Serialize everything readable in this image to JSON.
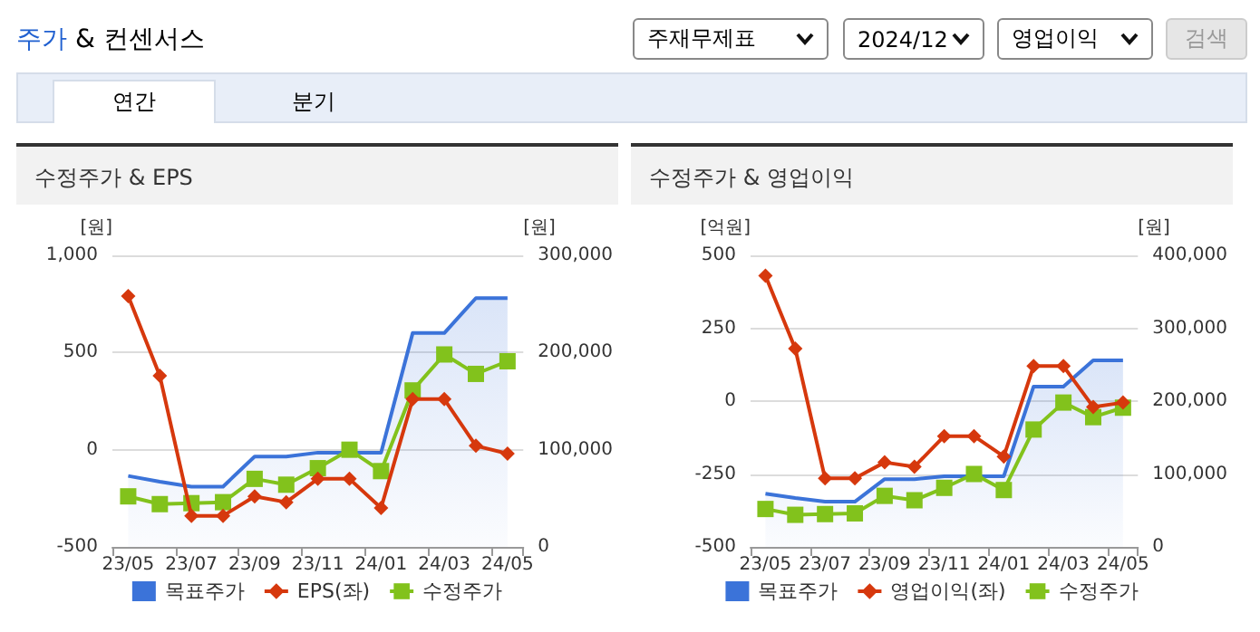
{
  "chart_data": [
    {
      "type": "other",
      "title": "주가 & 컨센서스",
      "annotations": [
        "주재무제표",
        "2024/12",
        "영업이익",
        "검색",
        "연간",
        "분기"
      ]
    },
    {
      "type": "line",
      "title": "수정주가 & EPS",
      "ylabel": "[원]",
      "y2label": "[원]",
      "categories": [
        "23/05",
        null,
        "23/07",
        null,
        "23/09",
        null,
        "23/11",
        null,
        "24/01",
        null,
        "24/03",
        null,
        "24/05"
      ],
      "ylim": [
        -500,
        1000
      ],
      "yticks": [
        -500,
        0,
        500,
        {
          "value": 1000,
          "label": "1,000"
        }
      ],
      "y2lim": [
        0,
        300000
      ],
      "y2ticks": [
        0,
        {
          "value": 100000,
          "label": "100,000"
        },
        {
          "value": 200000,
          "label": "200,000"
        },
        {
          "value": 300000,
          "label": "300,000"
        }
      ],
      "grid": "y",
      "legend": "bottom",
      "series": [
        {
          "name": "목표주가",
          "type": "area",
          "axis": "y2",
          "marker": "none",
          "color": "#3b73d9",
          "values": [
            73000,
            67000,
            62000,
            62000,
            93000,
            93000,
            97000,
            97000,
            97000,
            220000,
            220000,
            256000,
            256000
          ]
        },
        {
          "name": "EPS(좌)",
          "type": "line",
          "marker": "diamond",
          "color": "#d6380d",
          "values": [
            790,
            380,
            -340,
            -340,
            -240,
            -270,
            -150,
            -150,
            -300,
            260,
            260,
            20,
            -20
          ]
        },
        {
          "name": "수정주가",
          "type": "line",
          "axis": "y2",
          "marker": "square",
          "color": "#82c21c",
          "values": [
            52000,
            44000,
            45000,
            46000,
            70000,
            64000,
            81000,
            100000,
            78000,
            161000,
            198000,
            178000,
            191000
          ]
        }
      ]
    },
    {
      "type": "line",
      "title": "수정주가 & 영업이익",
      "ylabel": "[억원]",
      "y2label": "[원]",
      "categories": [
        "23/05",
        null,
        "23/07",
        null,
        "23/09",
        null,
        "23/11",
        null,
        "24/01",
        null,
        "24/03",
        null,
        "24/05"
      ],
      "ylim": [
        -500,
        500
      ],
      "yticks": [
        -500,
        -250,
        0,
        250,
        500
      ],
      "y2lim": [
        0,
        400000
      ],
      "y2ticks": [
        0,
        {
          "value": 100000,
          "label": "100,000"
        },
        {
          "value": 200000,
          "label": "200,000"
        },
        {
          "value": 300000,
          "label": "300,000"
        },
        {
          "value": 400000,
          "label": "400,000"
        }
      ],
      "grid": "y",
      "legend": "bottom",
      "series": [
        {
          "name": "목표주가",
          "type": "area",
          "axis": "y2",
          "marker": "none",
          "color": "#3b73d9",
          "values": [
            73000,
            67000,
            62000,
            62000,
            93000,
            93000,
            97000,
            97000,
            97000,
            220000,
            220000,
            256000,
            256000
          ]
        },
        {
          "name": "영업이익(좌)",
          "type": "line",
          "marker": "diamond",
          "color": "#d6380d",
          "values": [
            430,
            180,
            -265,
            -265,
            -210,
            -225,
            -120,
            -120,
            -190,
            120,
            120,
            -20,
            -5
          ]
        },
        {
          "name": "수정주가",
          "type": "line",
          "axis": "y2",
          "marker": "square",
          "color": "#82c21c",
          "values": [
            52000,
            44000,
            45000,
            46000,
            70000,
            64000,
            81000,
            100000,
            78000,
            161000,
            198000,
            178000,
            191000
          ]
        }
      ]
    }
  ]
}
